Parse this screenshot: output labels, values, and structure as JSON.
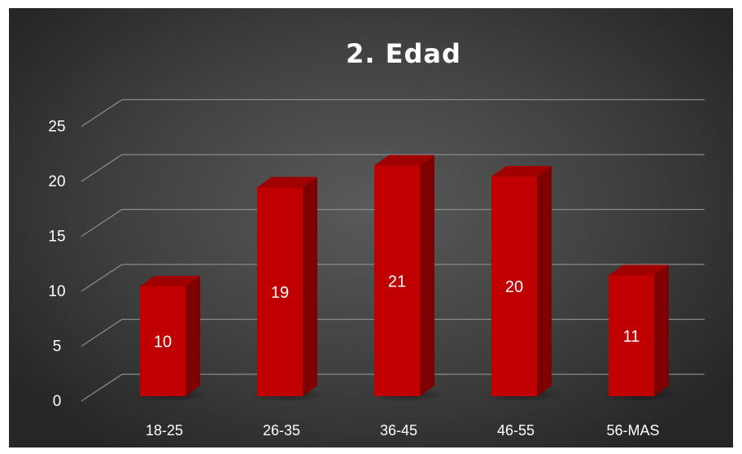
{
  "chart_data": {
    "type": "bar",
    "title": "2. Edad",
    "categories": [
      "18-25",
      "26-35",
      "36-45",
      "46-55",
      "56-MAS"
    ],
    "values": [
      10,
      19,
      21,
      20,
      11
    ],
    "ylim": [
      0,
      25
    ],
    "yticks": [
      0,
      5,
      10,
      15,
      20,
      25
    ],
    "xlabel": "",
    "ylabel": "",
    "grid": true,
    "legend": "none",
    "data_labels": true,
    "colors": {
      "bar_front": "#c00000",
      "bar_side": "#7f0000",
      "bar_top": "#a00000",
      "grid": "#8a8a8a",
      "text": "#ffffff",
      "background": "#404040"
    }
  }
}
